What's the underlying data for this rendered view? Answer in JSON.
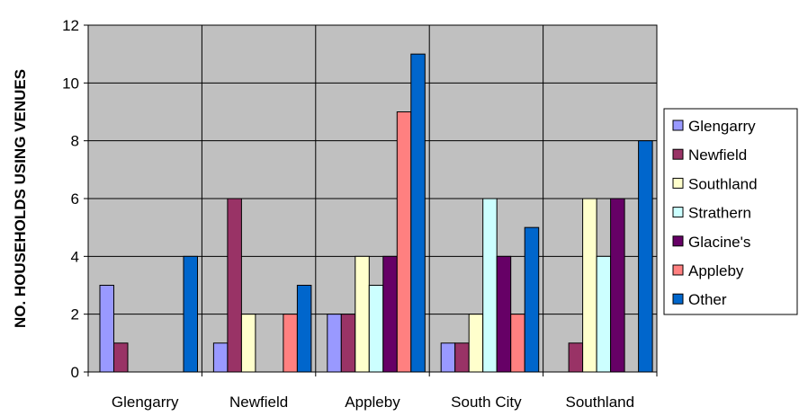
{
  "chart_data": {
    "type": "bar",
    "title": "",
    "xlabel": "",
    "ylabel": "NO. HOUSEHOLDS USING VENUES",
    "ylim": [
      0,
      12
    ],
    "yticks": [
      "0",
      "2",
      "4",
      "6",
      "8",
      "10",
      "12"
    ],
    "grid": true,
    "legend_position": "right",
    "categories": [
      "Glengarry",
      "Newfield",
      "Appleby",
      "South City",
      "Southland"
    ],
    "series": [
      {
        "name": "Glengarry",
        "color": "#9999ff",
        "values": [
          3,
          1,
          2,
          1,
          0
        ]
      },
      {
        "name": "Newfield",
        "color": "#993366",
        "values": [
          1,
          6,
          2,
          1,
          1
        ]
      },
      {
        "name": "Southland",
        "color": "#ffffcc",
        "values": [
          0,
          2,
          4,
          2,
          6
        ]
      },
      {
        "name": "Strathern",
        "color": "#ccffff",
        "values": [
          0,
          0,
          3,
          6,
          4
        ]
      },
      {
        "name": "Glacine's",
        "color": "#660066",
        "values": [
          0,
          0,
          4,
          4,
          6
        ]
      },
      {
        "name": "Appleby",
        "color": "#ff8080",
        "values": [
          0,
          2,
          9,
          2,
          0
        ]
      },
      {
        "name": "Other",
        "color": "#0066cc",
        "values": [
          4,
          3,
          11,
          5,
          8
        ]
      }
    ],
    "plot_background": "#c0c0c0"
  }
}
